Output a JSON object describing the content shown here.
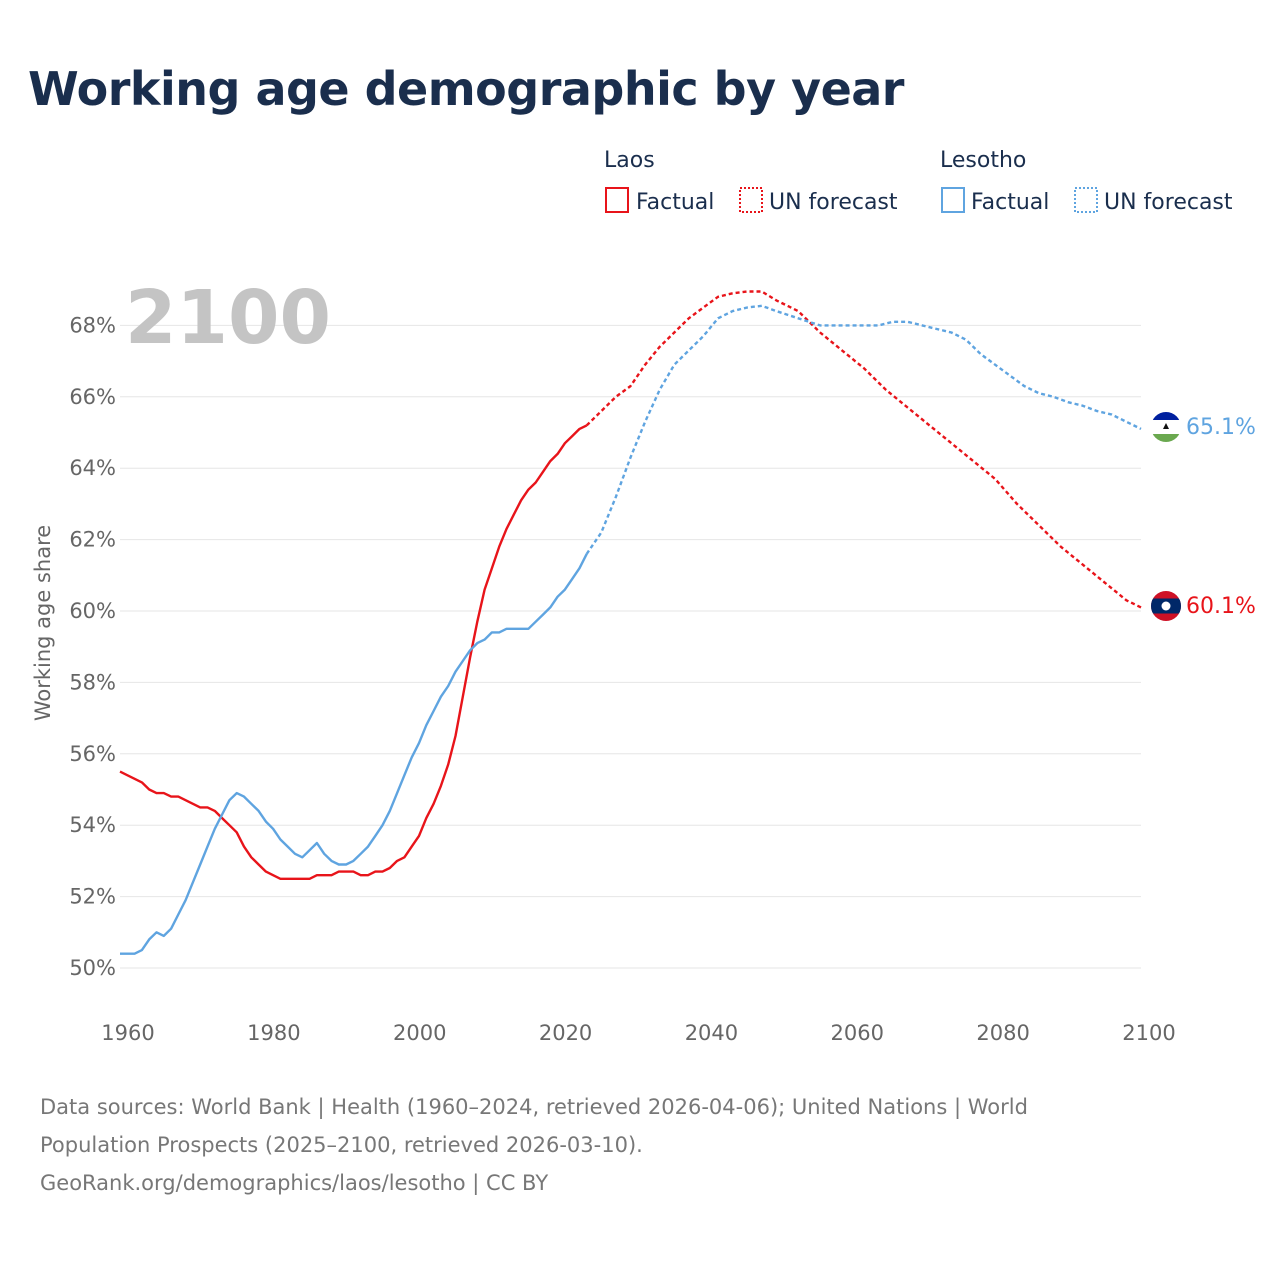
{
  "title": "Working age demographic by year",
  "footer": {
    "line1": "Data sources: World Bank | Health (1960–2024, retrieved 2026-04-06); United Nations | World",
    "line2": "Population Prospects (2025–2100, retrieved 2026-03-10).",
    "line3": "GeoRank.org/demographics/laos/lesotho | CC BY"
  },
  "legend": {
    "groups": [
      {
        "country": "Laos",
        "factual_label": "Factual",
        "forecast_label": "UN forecast",
        "color": "#e8141a"
      },
      {
        "country": "Lesotho",
        "factual_label": "Factual",
        "forecast_label": "UN forecast",
        "color": "#5fa4e0"
      }
    ]
  },
  "colors": {
    "laos": "#e8141a",
    "lesotho": "#5fa4e0",
    "grid": "#e6e6e6",
    "year_watermark": "#c4c4c4"
  },
  "chart_data": {
    "type": "line",
    "current_year_label": "2100",
    "ylabel": "Working age share",
    "xlabel": "",
    "xlim": [
      1960,
      2100
    ],
    "ylim": [
      50,
      69
    ],
    "x_ticks": [
      "1960",
      "1980",
      "2000",
      "2020",
      "2040",
      "2060",
      "2080",
      "2100"
    ],
    "y_ticks": [
      "50%",
      "52%",
      "54%",
      "56%",
      "58%",
      "60%",
      "62%",
      "64%",
      "66%",
      "68%"
    ],
    "forecast_start": 2024,
    "series": [
      {
        "name": "Laos",
        "end_label": "60.1%",
        "flag": "laos-flag",
        "points": [
          [
            1960,
            55.5
          ],
          [
            1962,
            55.3
          ],
          [
            1963,
            55.2
          ],
          [
            1964,
            55.0
          ],
          [
            1965,
            54.9
          ],
          [
            1966,
            54.9
          ],
          [
            1967,
            54.8
          ],
          [
            1968,
            54.8
          ],
          [
            1970,
            54.6
          ],
          [
            1971,
            54.5
          ],
          [
            1972,
            54.5
          ],
          [
            1973,
            54.4
          ],
          [
            1974,
            54.2
          ],
          [
            1975,
            54.0
          ],
          [
            1976,
            53.8
          ],
          [
            1977,
            53.4
          ],
          [
            1978,
            53.1
          ],
          [
            1979,
            52.9
          ],
          [
            1980,
            52.7
          ],
          [
            1981,
            52.6
          ],
          [
            1982,
            52.5
          ],
          [
            1984,
            52.5
          ],
          [
            1986,
            52.5
          ],
          [
            1987,
            52.6
          ],
          [
            1989,
            52.6
          ],
          [
            1990,
            52.7
          ],
          [
            1992,
            52.7
          ],
          [
            1993,
            52.6
          ],
          [
            1994,
            52.6
          ],
          [
            1995,
            52.7
          ],
          [
            1996,
            52.7
          ],
          [
            1997,
            52.8
          ],
          [
            1998,
            53.0
          ],
          [
            1999,
            53.1
          ],
          [
            2000,
            53.4
          ],
          [
            2001,
            53.7
          ],
          [
            2002,
            54.2
          ],
          [
            2003,
            54.6
          ],
          [
            2004,
            55.1
          ],
          [
            2005,
            55.7
          ],
          [
            2006,
            56.5
          ],
          [
            2007,
            57.6
          ],
          [
            2008,
            58.7
          ],
          [
            2009,
            59.7
          ],
          [
            2010,
            60.6
          ],
          [
            2011,
            61.2
          ],
          [
            2012,
            61.8
          ],
          [
            2013,
            62.3
          ],
          [
            2014,
            62.7
          ],
          [
            2015,
            63.1
          ],
          [
            2016,
            63.4
          ],
          [
            2017,
            63.6
          ],
          [
            2018,
            63.9
          ],
          [
            2019,
            64.2
          ],
          [
            2020,
            64.4
          ],
          [
            2021,
            64.7
          ],
          [
            2022,
            64.9
          ],
          [
            2023,
            65.1
          ],
          [
            2024,
            65.2
          ],
          [
            2026,
            65.6
          ],
          [
            2028,
            66.0
          ],
          [
            2030,
            66.3
          ],
          [
            2032,
            66.9
          ],
          [
            2034,
            67.4
          ],
          [
            2036,
            67.8
          ],
          [
            2038,
            68.2
          ],
          [
            2040,
            68.5
          ],
          [
            2042,
            68.8
          ],
          [
            2044,
            68.9
          ],
          [
            2046,
            68.95
          ],
          [
            2048,
            68.95
          ],
          [
            2050,
            68.7
          ],
          [
            2053,
            68.4
          ],
          [
            2056,
            67.8
          ],
          [
            2059,
            67.3
          ],
          [
            2062,
            66.8
          ],
          [
            2065,
            66.2
          ],
          [
            2068,
            65.7
          ],
          [
            2071,
            65.2
          ],
          [
            2074,
            64.7
          ],
          [
            2077,
            64.2
          ],
          [
            2080,
            63.7
          ],
          [
            2083,
            63.0
          ],
          [
            2086,
            62.4
          ],
          [
            2089,
            61.8
          ],
          [
            2092,
            61.3
          ],
          [
            2095,
            60.8
          ],
          [
            2098,
            60.3
          ],
          [
            2100,
            60.1
          ]
        ]
      },
      {
        "name": "Lesotho",
        "end_label": "65.1%",
        "flag": "lesotho-flag",
        "points": [
          [
            1960,
            50.4
          ],
          [
            1962,
            50.4
          ],
          [
            1963,
            50.5
          ],
          [
            1964,
            50.8
          ],
          [
            1965,
            51.0
          ],
          [
            1966,
            50.9
          ],
          [
            1967,
            51.1
          ],
          [
            1968,
            51.5
          ],
          [
            1969,
            51.9
          ],
          [
            1970,
            52.4
          ],
          [
            1971,
            52.9
          ],
          [
            1972,
            53.4
          ],
          [
            1973,
            53.9
          ],
          [
            1974,
            54.3
          ],
          [
            1975,
            54.7
          ],
          [
            1976,
            54.9
          ],
          [
            1977,
            54.8
          ],
          [
            1978,
            54.6
          ],
          [
            1979,
            54.4
          ],
          [
            1980,
            54.1
          ],
          [
            1981,
            53.9
          ],
          [
            1982,
            53.6
          ],
          [
            1983,
            53.4
          ],
          [
            1984,
            53.2
          ],
          [
            1985,
            53.1
          ],
          [
            1986,
            53.3
          ],
          [
            1987,
            53.5
          ],
          [
            1988,
            53.2
          ],
          [
            1989,
            53.0
          ],
          [
            1990,
            52.9
          ],
          [
            1991,
            52.9
          ],
          [
            1992,
            53.0
          ],
          [
            1993,
            53.2
          ],
          [
            1994,
            53.4
          ],
          [
            1995,
            53.7
          ],
          [
            1996,
            54.0
          ],
          [
            1997,
            54.4
          ],
          [
            1998,
            54.9
          ],
          [
            1999,
            55.4
          ],
          [
            2000,
            55.9
          ],
          [
            2001,
            56.3
          ],
          [
            2002,
            56.8
          ],
          [
            2003,
            57.2
          ],
          [
            2004,
            57.6
          ],
          [
            2005,
            57.9
          ],
          [
            2006,
            58.3
          ],
          [
            2007,
            58.6
          ],
          [
            2008,
            58.9
          ],
          [
            2009,
            59.1
          ],
          [
            2010,
            59.2
          ],
          [
            2011,
            59.4
          ],
          [
            2012,
            59.4
          ],
          [
            2013,
            59.5
          ],
          [
            2015,
            59.5
          ],
          [
            2016,
            59.5
          ],
          [
            2017,
            59.7
          ],
          [
            2018,
            59.9
          ],
          [
            2019,
            60.1
          ],
          [
            2020,
            60.4
          ],
          [
            2021,
            60.6
          ],
          [
            2022,
            60.9
          ],
          [
            2023,
            61.2
          ],
          [
            2024,
            61.6
          ],
          [
            2026,
            62.2
          ],
          [
            2028,
            63.2
          ],
          [
            2030,
            64.3
          ],
          [
            2032,
            65.3
          ],
          [
            2034,
            66.2
          ],
          [
            2036,
            66.9
          ],
          [
            2038,
            67.3
          ],
          [
            2040,
            67.7
          ],
          [
            2042,
            68.2
          ],
          [
            2044,
            68.4
          ],
          [
            2046,
            68.5
          ],
          [
            2048,
            68.55
          ],
          [
            2050,
            68.4
          ],
          [
            2053,
            68.2
          ],
          [
            2056,
            68.0
          ],
          [
            2060,
            68.0
          ],
          [
            2064,
            68.0
          ],
          [
            2066,
            68.1
          ],
          [
            2068,
            68.1
          ],
          [
            2070,
            68.0
          ],
          [
            2072,
            67.9
          ],
          [
            2074,
            67.8
          ],
          [
            2076,
            67.6
          ],
          [
            2078,
            67.2
          ],
          [
            2080,
            66.9
          ],
          [
            2082,
            66.6
          ],
          [
            2084,
            66.3
          ],
          [
            2086,
            66.1
          ],
          [
            2088,
            66.0
          ],
          [
            2090,
            65.85
          ],
          [
            2092,
            65.75
          ],
          [
            2094,
            65.6
          ],
          [
            2096,
            65.5
          ],
          [
            2098,
            65.3
          ],
          [
            2100,
            65.1
          ]
        ]
      }
    ]
  }
}
